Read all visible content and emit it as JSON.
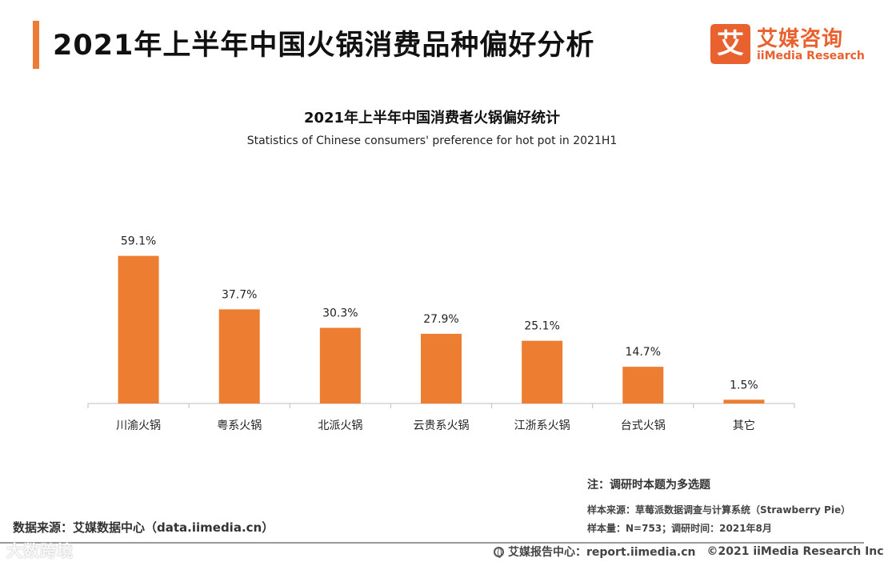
{
  "page": {
    "title": "2021年上半年中国火锅消费品种偏好分析"
  },
  "logo": {
    "mark": "艾",
    "name_cn": "艾媒咨询",
    "name_en": "iiMedia Research"
  },
  "chart_data": {
    "type": "bar",
    "title": "2021年上半年中国消费者火锅偏好统计",
    "subtitle": "Statistics of Chinese consumers' preference for hot pot in 2021H1",
    "categories": [
      "川渝火锅",
      "粤系火锅",
      "北派火锅",
      "云贵系火锅",
      "江浙系火锅",
      "台式火锅",
      "其它"
    ],
    "values": [
      59.1,
      37.7,
      30.3,
      27.9,
      25.1,
      14.7,
      1.5
    ],
    "value_labels": [
      "59.1%",
      "37.7%",
      "30.3%",
      "27.9%",
      "25.1%",
      "14.7%",
      "1.5%"
    ],
    "unit": "%",
    "ylim": [
      0,
      100
    ],
    "grid": false,
    "bar_color": "#ed7d31",
    "xlabel": "",
    "ylabel": ""
  },
  "notes": {
    "note": "注：调研时本题为多选题",
    "sample_source": "样本来源：草莓派数据调查与计算系统（Strawberry Pie）",
    "sample_size": "样本量：N=753；调研时间：2021年8月"
  },
  "footer": {
    "data_source": "数据来源：艾媒数据中心（data.iimedia.cn）",
    "report_center": "艾媒报告中心：report.iimedia.cn",
    "copyright": "©2021  iiMedia Research  Inc",
    "watermark": "大数跨境"
  },
  "colors": {
    "accent": "#ee7b35",
    "brand": "#e9612e",
    "bar": "#ed7d31"
  }
}
